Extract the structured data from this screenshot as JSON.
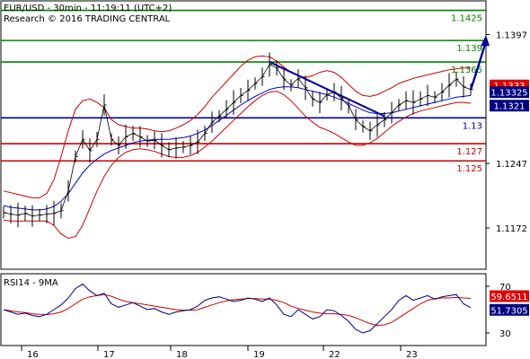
{
  "header": {
    "line1": "EUR/USD - 30min - 11:19:11 (UTC+2)",
    "line2": "Research © 2016 TRADING CENTRAL"
  },
  "rsi_panel": {
    "label": "RSI14 - 9MA"
  },
  "colors": {
    "resistance": "#008000",
    "support": "#cc0000",
    "pivot": "#000099",
    "price": "#000000",
    "bands": "#cc0000",
    "ma": "#0000cc",
    "arrow": "#000099",
    "badge_red": "#dd0000",
    "badge_blue": "#000080",
    "rsi": "#000080",
    "rsi_ma": "#cc0000"
  },
  "chart_data": [
    {
      "type": "line",
      "title": "EUR/USD - 30min",
      "ylim": [
        1.1125,
        1.1435
      ],
      "x_labels": [
        "16",
        "17",
        "18",
        "19",
        "22",
        "23"
      ],
      "y_ticks": [
        {
          "value": 1.1397,
          "label": "1.1397"
        },
        {
          "value": 1.1247,
          "label": "1.1247"
        },
        {
          "value": 1.1172,
          "label": "1.1172"
        }
      ],
      "levels": [
        {
          "value": 1.1425,
          "label": "1.1425",
          "kind": "resistance"
        },
        {
          "value": 1.139,
          "label": "1.139",
          "kind": "resistance"
        },
        {
          "value": 1.1365,
          "label": "1.1365",
          "kind": "resistance"
        },
        {
          "value": 1.13,
          "label": "1.13",
          "kind": "pivot"
        },
        {
          "value": 1.127,
          "label": "1.127",
          "kind": "support"
        },
        {
          "value": 1.125,
          "label": "1.125",
          "kind": "support"
        }
      ],
      "price_badges": [
        {
          "value": 1.1333,
          "label": "1.1333",
          "color": "badge_red"
        },
        {
          "value": 1.13325,
          "label": "1.13325",
          "color": "badge_blue"
        },
        {
          "value": 1.1321,
          "label": "1.1321",
          "color": "badge_blue"
        }
      ],
      "series": [
        {
          "key": "price",
          "values": [
            1.119,
            1.1188,
            1.1187,
            1.1189,
            1.1186,
            1.1187,
            1.1188,
            1.1189,
            1.1192,
            1.1215,
            1.1255,
            1.1275,
            1.1262,
            1.1275,
            1.1315,
            1.1275,
            1.1268,
            1.1278,
            1.1282,
            1.1278,
            1.1273,
            1.1274,
            1.1268,
            1.1263,
            1.1265,
            1.1266,
            1.1268,
            1.1272,
            1.1282,
            1.1295,
            1.1302,
            1.131,
            1.1318,
            1.1326,
            1.1332,
            1.134,
            1.1348,
            1.1362,
            1.1358,
            1.1345,
            1.1338,
            1.1346,
            1.1335,
            1.1322,
            1.1318,
            1.1327,
            1.133,
            1.1323,
            1.1314,
            1.1298,
            1.129,
            1.1285,
            1.1292,
            1.1298,
            1.1306,
            1.1315,
            1.132,
            1.1318,
            1.1322,
            1.1326,
            1.1324,
            1.133,
            1.1338,
            1.1345,
            1.1336,
            1.1333
          ]
        },
        {
          "key": "band_upper",
          "values": [
            1.1215,
            1.1213,
            1.1211,
            1.1209,
            1.1207,
            1.1207,
            1.1212,
            1.1228,
            1.1255,
            1.1285,
            1.131,
            1.132,
            1.1322,
            1.1318,
            1.1312,
            1.1298,
            1.1292,
            1.129,
            1.1288,
            1.1288,
            1.1287,
            1.1285,
            1.1284,
            1.1285,
            1.1288,
            1.1292,
            1.1297,
            1.1304,
            1.1313,
            1.1324,
            1.1333,
            1.1342,
            1.1351,
            1.136,
            1.1367,
            1.1371,
            1.1372,
            1.1371,
            1.1366,
            1.1359,
            1.1353,
            1.1349,
            1.1347,
            1.1349,
            1.1353,
            1.1355,
            1.1353,
            1.1347,
            1.1339,
            1.1331,
            1.1326,
            1.1325,
            1.1327,
            1.1331,
            1.1335,
            1.134,
            1.1343,
            1.1346,
            1.1348,
            1.135,
            1.1352,
            1.1354,
            1.1356,
            1.1357,
            1.1358,
            1.1358
          ]
        },
        {
          "key": "band_lower",
          "values": [
            1.1181,
            1.118,
            1.118,
            1.118,
            1.118,
            1.118,
            1.118,
            1.1175,
            1.1165,
            1.116,
            1.1162,
            1.1175,
            1.1195,
            1.1215,
            1.1232,
            1.1245,
            1.1254,
            1.126,
            1.1263,
            1.1264,
            1.1263,
            1.1261,
            1.1258,
            1.1255,
            1.1254,
            1.1254,
            1.1256,
            1.126,
            1.1266,
            1.1273,
            1.1281,
            1.1289,
            1.1297,
            1.1305,
            1.1313,
            1.132,
            1.1326,
            1.133,
            1.1331,
            1.1327,
            1.132,
            1.1311,
            1.1302,
            1.1295,
            1.1289,
            1.1286,
            1.1282,
            1.1277,
            1.1272,
            1.1268,
            1.1268,
            1.1271,
            1.1276,
            1.1283,
            1.129,
            1.1296,
            1.1301,
            1.1305,
            1.1308,
            1.131,
            1.1312,
            1.1314,
            1.1316,
            1.1318,
            1.1318,
            1.1317
          ]
        },
        {
          "key": "ma",
          "values": [
            1.1198,
            1.1196,
            1.1195,
            1.1194,
            1.1193,
            1.1193,
            1.1194,
            1.1197,
            1.1203,
            1.1212,
            1.1224,
            1.1236,
            1.1245,
            1.1252,
            1.1258,
            1.1262,
            1.1265,
            1.1268,
            1.1271,
            1.1273,
            1.1274,
            1.1275,
            1.1275,
            1.1275,
            1.1276,
            1.1277,
            1.1279,
            1.1282,
            1.1286,
            1.1291,
            1.1297,
            1.1303,
            1.1309,
            1.1315,
            1.132,
            1.1325,
            1.1329,
            1.1333,
            1.1335,
            1.1336,
            1.1336,
            1.1335,
            1.1333,
            1.1331,
            1.1329,
            1.1327,
            1.1324,
            1.1321,
            1.1317,
            1.1313,
            1.1309,
            1.1306,
            1.1305,
            1.1305,
            1.1306,
            1.1308,
            1.131,
            1.1312,
            1.1314,
            1.1316,
            1.1318,
            1.132,
            1.1322,
            1.1324,
            1.1325,
            1.1326
          ]
        }
      ],
      "trendline": {
        "from": [
          37,
          1.1365
        ],
        "to": [
          53,
          1.1302
        ]
      },
      "forecast_arrow": {
        "from": [
          65,
          1.1333
        ],
        "to": [
          67,
          1.1392
        ]
      }
    },
    {
      "type": "line",
      "title": "RSI14 - 9MA",
      "ylim": [
        20,
        80
      ],
      "y_ticks": [
        {
          "value": 70,
          "label": "70"
        },
        {
          "value": 30,
          "label": "30"
        }
      ],
      "badges": [
        {
          "value": 59.6511,
          "label": "59.6511",
          "color": "badge_red"
        },
        {
          "value": 51.7305,
          "label": "51.7305",
          "color": "badge_blue"
        }
      ],
      "series": [
        {
          "key": "rsi",
          "values": [
            50,
            48,
            46,
            47,
            45,
            44,
            46,
            50,
            54,
            60,
            68,
            72,
            66,
            62,
            64,
            55,
            52,
            54,
            56,
            53,
            50,
            51,
            48,
            46,
            48,
            49,
            50,
            53,
            58,
            60,
            61,
            59,
            57,
            58,
            60,
            59,
            57,
            60,
            54,
            46,
            44,
            50,
            46,
            42,
            44,
            50,
            49,
            45,
            40,
            33,
            30,
            32,
            38,
            44,
            50,
            58,
            62,
            58,
            60,
            62,
            59,
            61,
            62,
            63,
            55,
            51.7305
          ]
        },
        {
          "key": "rsi_ma",
          "values": [
            50,
            49,
            48,
            47.5,
            46.5,
            46,
            45.8,
            46.5,
            48,
            51,
            55,
            59,
            61,
            62,
            63,
            61.5,
            59,
            57,
            56,
            55,
            54,
            53,
            52,
            51,
            50,
            49.5,
            49.5,
            50,
            52,
            54,
            56,
            57.5,
            58.5,
            59,
            59.5,
            59.5,
            59,
            59,
            58,
            56,
            53,
            51,
            49.5,
            48,
            47,
            46.5,
            46.5,
            46,
            45,
            43,
            40.5,
            38,
            36.5,
            37,
            39,
            43,
            47,
            51,
            55,
            58,
            59.5,
            60,
            60,
            60.5,
            60,
            59.6511
          ]
        }
      ]
    }
  ]
}
